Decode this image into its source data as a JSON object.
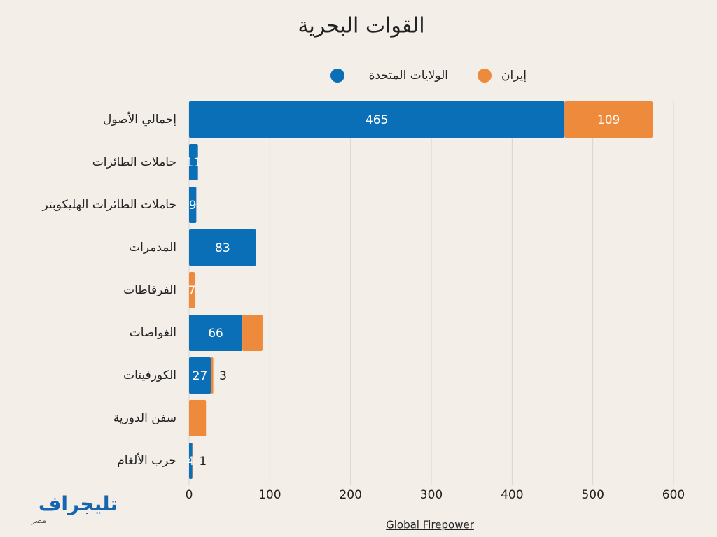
{
  "chart_data": {
    "type": "hbar-stacked",
    "title": "القوات البحرية",
    "categories": [
      "إجمالي الأصول",
      "حاملات الطائرات",
      "حاملات الطائرات الهليكوبتر",
      "المدمرات",
      "الفرقاطات",
      "الغواصات",
      "الكورفيتات",
      "سفن الدورية",
      "حرب الألغام"
    ],
    "series": [
      {
        "name": "الولايات المتحدة",
        "color": "#0b6fb8",
        "values": [
          465,
          11,
          9,
          83,
          0,
          66,
          27,
          0,
          4
        ],
        "value_labels": [
          "465",
          "11",
          "9",
          "83",
          null,
          "66",
          "27",
          null,
          "4"
        ]
      },
      {
        "name": "إيران",
        "color": "#ee8a3c",
        "values": [
          109,
          0,
          0,
          0,
          7,
          25,
          3,
          21,
          1
        ],
        "value_labels": [
          "109",
          null,
          null,
          null,
          "7",
          null,
          "3",
          null,
          "1"
        ]
      }
    ],
    "xlim": [
      0,
      600
    ],
    "xticks": [
      0,
      100,
      200,
      300,
      400,
      500,
      600
    ],
    "grid": true,
    "source": "Global Firepower",
    "logo": {
      "name": "تليجراف",
      "sub": "مصر"
    }
  }
}
